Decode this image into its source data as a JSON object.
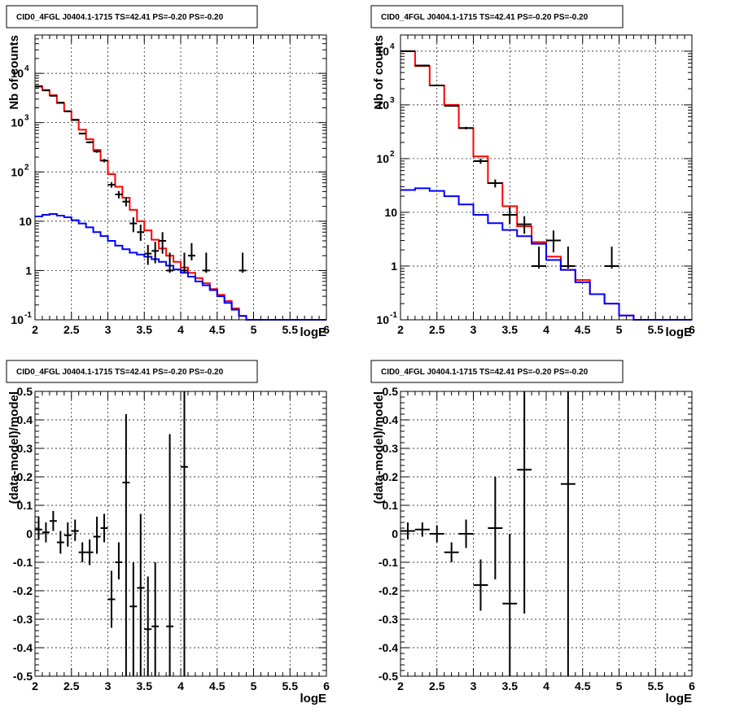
{
  "chart_data": [
    {
      "type": "line",
      "panel": "top-left",
      "title": "CID0_4FGL J0404.1-1715 TS=42.41 PS=-0.20 PS=-0.20",
      "xlabel": "logE",
      "ylabel": "Nb of counts",
      "xlim": [
        2,
        6
      ],
      "ylim": [
        0.1,
        60000
      ],
      "yscale": "log",
      "grid": true,
      "x_ticks": [
        "2",
        "2.5",
        "3",
        "3.5",
        "4",
        "4.5",
        "5",
        "5.5",
        "6"
      ],
      "y_ticks": [
        {
          "value": 0.1,
          "mantissa": "10",
          "exp": "-1"
        },
        {
          "value": 1,
          "mantissa": "1",
          "exp": ""
        },
        {
          "value": 10,
          "mantissa": "10",
          "exp": ""
        },
        {
          "value": 100,
          "mantissa": "10",
          "exp": "2"
        },
        {
          "value": 1000,
          "mantissa": "10",
          "exp": "3"
        },
        {
          "value": 10000,
          "mantissa": "10",
          "exp": "4"
        }
      ],
      "bin_width": 0.1,
      "series": [
        {
          "color": "#ff0000",
          "style": "step",
          "x": [
            2.0,
            2.1,
            2.2,
            2.3,
            2.4,
            2.5,
            2.6,
            2.7,
            2.8,
            2.9,
            3.0,
            3.1,
            3.2,
            3.3,
            3.4,
            3.5,
            3.6,
            3.7,
            3.8,
            3.9,
            4.0,
            4.1,
            4.2,
            4.3,
            4.4,
            4.5,
            4.6,
            4.7,
            4.8,
            4.9,
            5.0,
            5.1,
            5.2,
            5.3,
            5.4,
            5.5,
            5.6,
            5.7,
            5.8,
            5.9
          ],
          "values": [
            5500,
            4600,
            3600,
            2500,
            1700,
            1150,
            720,
            460,
            280,
            170,
            90,
            50,
            30,
            17,
            10,
            6.5,
            4.2,
            2.8,
            2.0,
            1.5,
            1.15,
            0.9,
            0.7,
            0.55,
            0.42,
            0.32,
            0.24,
            0.17,
            0.12,
            0.1,
            0.1,
            0.1,
            0.1,
            0.1,
            0.1,
            0.1,
            0.1,
            0.1,
            0.1,
            0.1
          ]
        },
        {
          "color": "#0000ff",
          "style": "step",
          "x": [
            2.0,
            2.1,
            2.2,
            2.3,
            2.4,
            2.5,
            2.6,
            2.7,
            2.8,
            2.9,
            3.0,
            3.1,
            3.2,
            3.3,
            3.4,
            3.5,
            3.6,
            3.7,
            3.8,
            3.9,
            4.0,
            4.1,
            4.2,
            4.3,
            4.4,
            4.5,
            4.6,
            4.7,
            4.8,
            4.9,
            5.0,
            5.1,
            5.2,
            5.3,
            5.4,
            5.5,
            5.6,
            5.7,
            5.8,
            5.9
          ],
          "values": [
            12.5,
            13.5,
            14,
            13,
            12,
            10.5,
            9,
            7.5,
            6,
            5,
            4,
            3.2,
            2.7,
            2.3,
            2.1,
            1.9,
            1.7,
            1.5,
            1.25,
            1.05,
            0.9,
            0.75,
            0.6,
            0.5,
            0.4,
            0.3,
            0.22,
            0.16,
            0.12,
            0.1,
            0.1,
            0.1,
            0.1,
            0.1,
            0.1,
            0.1,
            0.1,
            0.1,
            0.1,
            0.1
          ]
        },
        {
          "color": "#000000",
          "style": "errorbar",
          "x": [
            2.05,
            2.15,
            2.25,
            2.35,
            2.45,
            2.55,
            2.65,
            2.75,
            2.85,
            2.95,
            3.05,
            3.15,
            3.25,
            3.35,
            3.45,
            3.55,
            3.65,
            3.75,
            3.85,
            4.05,
            4.15,
            4.35,
            4.85
          ],
          "values": [
            5400,
            4500,
            3500,
            2550,
            1700,
            1130,
            600,
            400,
            260,
            170,
            55,
            35,
            25,
            9,
            6,
            2.2,
            2.5,
            4,
            1,
            1,
            2,
            1,
            1
          ],
          "err_low": [
            5330,
            4430,
            3440,
            2500,
            1660,
            1100,
            575,
            380,
            245,
            157,
            48,
            29,
            20,
            6,
            4,
            1.3,
            1.4,
            2.2,
            0.9,
            0.9,
            1.6,
            0.9,
            0.9
          ],
          "err_high": [
            5470,
            4570,
            3560,
            2600,
            1740,
            1160,
            625,
            420,
            275,
            183,
            62,
            41,
            30,
            12,
            8.5,
            3.3,
            3.8,
            6,
            2.3,
            2.3,
            3.6,
            2.3,
            2.3
          ]
        }
      ]
    },
    {
      "type": "line",
      "panel": "top-right",
      "title": "CID0_4FGL J0404.1-1715 TS=42.41 PS=-0.20 PS=-0.20",
      "xlabel": "logE",
      "ylabel": "Nb of counts",
      "xlim": [
        2,
        6
      ],
      "ylim": [
        0.1,
        20000
      ],
      "yscale": "log",
      "grid": true,
      "x_ticks": [
        "2",
        "2.5",
        "3",
        "3.5",
        "4",
        "4.5",
        "5",
        "5.5",
        "6"
      ],
      "y_ticks": [
        {
          "value": 0.1,
          "mantissa": "10",
          "exp": "-1"
        },
        {
          "value": 1,
          "mantissa": "1",
          "exp": ""
        },
        {
          "value": 10,
          "mantissa": "10",
          "exp": ""
        },
        {
          "value": 100,
          "mantissa": "10",
          "exp": "2"
        },
        {
          "value": 1000,
          "mantissa": "10",
          "exp": "3"
        },
        {
          "value": 10000,
          "mantissa": "10",
          "exp": "4"
        }
      ],
      "bin_width": 0.2,
      "series": [
        {
          "color": "#ff0000",
          "style": "step",
          "x": [
            2.0,
            2.2,
            2.4,
            2.6,
            2.8,
            3.0,
            3.2,
            3.4,
            3.6,
            3.8,
            4.0,
            4.2,
            4.4,
            4.6,
            4.8,
            5.0,
            5.2,
            5.4,
            5.6,
            5.8
          ],
          "values": [
            10000,
            5300,
            2300,
            1000,
            370,
            110,
            35,
            13,
            5.5,
            2.8,
            1.5,
            0.85,
            0.55,
            0.3,
            0.2,
            0.12,
            0.1,
            0.1,
            0.1,
            0.1
          ]
        },
        {
          "color": "#0000ff",
          "style": "step",
          "x": [
            2.0,
            2.2,
            2.4,
            2.6,
            2.8,
            3.0,
            3.2,
            3.4,
            3.6,
            3.8,
            4.0,
            4.2,
            4.4,
            4.6,
            4.8,
            5.0,
            5.2,
            5.4,
            5.6,
            5.8
          ],
          "values": [
            26,
            28,
            25,
            20,
            14,
            9,
            6.3,
            4.7,
            3.6,
            2.6,
            1.3,
            0.85,
            0.5,
            0.3,
            0.2,
            0.12,
            0.1,
            0.1,
            0.1,
            0.1
          ]
        },
        {
          "color": "#000000",
          "style": "errorbar",
          "x": [
            2.1,
            2.3,
            2.5,
            2.7,
            2.9,
            3.1,
            3.3,
            3.5,
            3.7,
            3.9,
            4.1,
            4.3,
            4.9
          ],
          "values": [
            10000,
            5400,
            2300,
            960,
            370,
            90,
            35,
            9,
            6,
            1,
            3,
            1,
            1
          ],
          "err_low": [
            9900,
            5330,
            2250,
            930,
            350,
            80,
            29,
            6,
            4,
            0.9,
            1.8,
            0.9,
            0.9
          ],
          "err_high": [
            10100,
            5470,
            2350,
            990,
            390,
            100,
            41,
            12.5,
            8.5,
            2.3,
            4.6,
            2.3,
            2.3
          ]
        }
      ]
    },
    {
      "type": "scatter",
      "panel": "bottom-left",
      "title": "CID0_4FGL J0404.1-1715 TS=42.41 PS=-0.20 PS=-0.20",
      "xlabel": "logE",
      "ylabel": "(data-model)/model",
      "xlim": [
        2,
        6
      ],
      "ylim": [
        -0.5,
        0.5
      ],
      "yscale": "linear",
      "grid": true,
      "x_ticks": [
        "2",
        "2.5",
        "3",
        "3.5",
        "4",
        "4.5",
        "5",
        "5.5",
        "6"
      ],
      "y_ticks": [
        {
          "value": -0.5,
          "label": "-0.5"
        },
        {
          "value": -0.4,
          "label": "-0.4"
        },
        {
          "value": -0.3,
          "label": "-0.3"
        },
        {
          "value": -0.2,
          "label": "-0.2"
        },
        {
          "value": -0.1,
          "label": "-0.1"
        },
        {
          "value": 0,
          "label": "0"
        },
        {
          "value": 0.1,
          "label": "0.1"
        },
        {
          "value": 0.2,
          "label": "0.2"
        },
        {
          "value": 0.3,
          "label": "0.3"
        },
        {
          "value": 0.4,
          "label": "0.4"
        },
        {
          "value": 0.5,
          "label": "0.5"
        }
      ],
      "bin_width": 0.1,
      "series": [
        {
          "color": "#000000",
          "style": "errorbar",
          "x": [
            2.05,
            2.15,
            2.25,
            2.35,
            2.45,
            2.55,
            2.65,
            2.75,
            2.85,
            2.95,
            3.05,
            3.15,
            3.25,
            3.35,
            3.45,
            3.55,
            3.65,
            3.85,
            4.05
          ],
          "values": [
            0.015,
            0.005,
            0.045,
            -0.03,
            -0.005,
            0.01,
            -0.065,
            -0.065,
            -0.01,
            0.02,
            -0.23,
            -0.1,
            0.18,
            -0.255,
            -0.19,
            -0.335,
            -0.325,
            -0.325,
            0.235
          ],
          "err_low": [
            -0.02,
            -0.03,
            0.01,
            -0.07,
            -0.045,
            -0.025,
            -0.1,
            -0.11,
            -0.07,
            -0.03,
            -0.33,
            -0.16,
            -0.55,
            -0.55,
            -0.55,
            -0.55,
            -0.55,
            -0.55,
            -0.55
          ],
          "err_high": [
            0.06,
            0.04,
            0.08,
            0.01,
            0.04,
            0.05,
            -0.03,
            -0.02,
            0.06,
            0.07,
            -0.13,
            -0.03,
            0.42,
            -0.1,
            0.07,
            -0.15,
            -0.1,
            0.35,
            0.55
          ]
        }
      ]
    },
    {
      "type": "scatter",
      "panel": "bottom-right",
      "title": "CID0_4FGL J0404.1-1715 TS=42.41 PS=-0.20 PS=-0.20",
      "xlabel": "logE",
      "ylabel": "(data-model)/model",
      "xlim": [
        2,
        6
      ],
      "ylim": [
        -0.5,
        0.5
      ],
      "yscale": "linear",
      "grid": true,
      "x_ticks": [
        "2",
        "2.5",
        "3",
        "3.5",
        "4",
        "4.5",
        "5",
        "5.5",
        "6"
      ],
      "y_ticks": [
        {
          "value": -0.5,
          "label": "-0.5"
        },
        {
          "value": -0.4,
          "label": "-0.4"
        },
        {
          "value": -0.3,
          "label": "-0.3"
        },
        {
          "value": -0.2,
          "label": "-0.2"
        },
        {
          "value": -0.1,
          "label": "-0.1"
        },
        {
          "value": 0,
          "label": "0"
        },
        {
          "value": 0.1,
          "label": "0.1"
        },
        {
          "value": 0.2,
          "label": "0.2"
        },
        {
          "value": 0.3,
          "label": "0.3"
        },
        {
          "value": 0.4,
          "label": "0.4"
        },
        {
          "value": 0.5,
          "label": "0.5"
        }
      ],
      "bin_width": 0.2,
      "series": [
        {
          "color": "#000000",
          "style": "errorbar",
          "x": [
            2.1,
            2.3,
            2.5,
            2.7,
            2.9,
            3.1,
            3.3,
            3.5,
            3.7,
            4.3
          ],
          "values": [
            0.01,
            0.015,
            0.0,
            -0.065,
            0.0,
            -0.18,
            0.02,
            -0.245,
            0.225,
            0.175
          ],
          "err_low": [
            -0.02,
            -0.01,
            -0.03,
            -0.1,
            -0.05,
            -0.27,
            -0.16,
            -0.55,
            -0.28,
            -0.55
          ],
          "err_high": [
            0.04,
            0.04,
            0.03,
            -0.03,
            0.05,
            -0.09,
            0.2,
            0.0,
            0.55,
            0.55
          ]
        }
      ]
    }
  ]
}
